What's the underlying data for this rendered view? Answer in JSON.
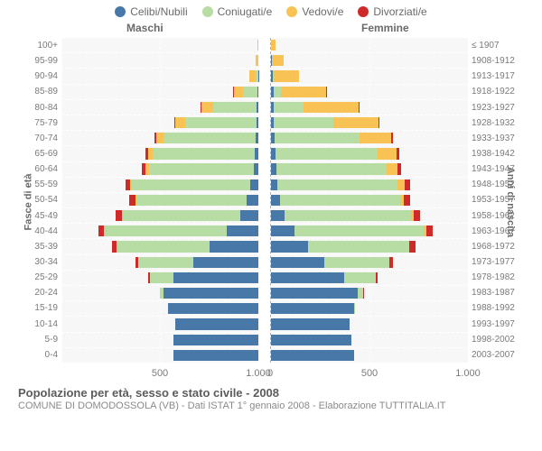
{
  "legend": [
    {
      "label": "Celibi/Nubili",
      "color": "#4878a8"
    },
    {
      "label": "Coniugati/e",
      "color": "#b7dca4"
    },
    {
      "label": "Vedovi/e",
      "color": "#f8c255"
    },
    {
      "label": "Divorziati/e",
      "color": "#cf2a2a"
    }
  ],
  "columns": {
    "male": "Maschi",
    "female": "Femmine"
  },
  "axis_left_title": "Fasce di età",
  "axis_right_title": "Anni di nascita",
  "age_labels": [
    "100+",
    "95-99",
    "90-94",
    "85-89",
    "80-84",
    "75-79",
    "70-74",
    "65-69",
    "60-64",
    "55-59",
    "50-54",
    "45-49",
    "40-44",
    "35-39",
    "30-34",
    "25-29",
    "20-24",
    "15-19",
    "10-14",
    "5-9",
    "0-4"
  ],
  "year_labels": [
    "≤ 1907",
    "1908-1912",
    "1913-1917",
    "1918-1922",
    "1923-1927",
    "1928-1932",
    "1933-1937",
    "1938-1942",
    "1943-1947",
    "1948-1952",
    "1953-1957",
    "1958-1962",
    "1963-1967",
    "1968-1972",
    "1973-1977",
    "1978-1982",
    "1983-1987",
    "1988-1992",
    "1993-1997",
    "1998-2002",
    "2003-2007"
  ],
  "x_max": 1000,
  "x_ticks": [
    {
      "pos": 0,
      "side": "left",
      "label": "1.000"
    },
    {
      "pos": 500,
      "side": "left",
      "label": "500"
    },
    {
      "pos": 0,
      "side": "center",
      "label": "0"
    },
    {
      "pos": 500,
      "side": "right",
      "label": "500"
    },
    {
      "pos": 1000,
      "side": "right",
      "label": "1.000"
    }
  ],
  "grid_steps": [
    500,
    1000
  ],
  "male": [
    {
      "single": 0,
      "married": 0,
      "widowed": 4,
      "divorced": 0
    },
    {
      "single": 0,
      "married": 0,
      "widowed": 16,
      "divorced": 0
    },
    {
      "single": 2,
      "married": 14,
      "widowed": 30,
      "divorced": 0
    },
    {
      "single": 6,
      "married": 70,
      "widowed": 50,
      "divorced": 2
    },
    {
      "single": 8,
      "married": 220,
      "widowed": 60,
      "divorced": 5
    },
    {
      "single": 10,
      "married": 360,
      "widowed": 50,
      "divorced": 6
    },
    {
      "single": 14,
      "married": 470,
      "widowed": 35,
      "divorced": 8
    },
    {
      "single": 18,
      "married": 520,
      "widowed": 22,
      "divorced": 12
    },
    {
      "single": 25,
      "married": 530,
      "widowed": 18,
      "divorced": 18
    },
    {
      "single": 40,
      "married": 600,
      "widowed": 10,
      "divorced": 25
    },
    {
      "single": 60,
      "married": 560,
      "widowed": 6,
      "divorced": 28
    },
    {
      "single": 90,
      "married": 600,
      "widowed": 4,
      "divorced": 30
    },
    {
      "single": 160,
      "married": 620,
      "widowed": 3,
      "divorced": 28
    },
    {
      "single": 250,
      "married": 470,
      "widowed": 2,
      "divorced": 22
    },
    {
      "single": 330,
      "married": 280,
      "widowed": 1,
      "divorced": 14
    },
    {
      "single": 430,
      "married": 120,
      "widowed": 0,
      "divorced": 8
    },
    {
      "single": 480,
      "married": 20,
      "widowed": 0,
      "divorced": 2
    },
    {
      "single": 460,
      "married": 0,
      "widowed": 0,
      "divorced": 0
    },
    {
      "single": 420,
      "married": 0,
      "widowed": 0,
      "divorced": 0
    },
    {
      "single": 430,
      "married": 0,
      "widowed": 0,
      "divorced": 0
    },
    {
      "single": 430,
      "married": 0,
      "widowed": 0,
      "divorced": 0
    }
  ],
  "female": [
    {
      "single": 2,
      "married": 0,
      "widowed": 22,
      "divorced": 0
    },
    {
      "single": 4,
      "married": 0,
      "widowed": 60,
      "divorced": 0
    },
    {
      "single": 8,
      "married": 6,
      "widowed": 130,
      "divorced": 0
    },
    {
      "single": 12,
      "married": 40,
      "widowed": 230,
      "divorced": 2
    },
    {
      "single": 14,
      "married": 150,
      "widowed": 280,
      "divorced": 4
    },
    {
      "single": 16,
      "married": 300,
      "widowed": 230,
      "divorced": 6
    },
    {
      "single": 18,
      "married": 430,
      "widowed": 160,
      "divorced": 10
    },
    {
      "single": 22,
      "married": 520,
      "widowed": 95,
      "divorced": 16
    },
    {
      "single": 26,
      "married": 560,
      "widowed": 55,
      "divorced": 20
    },
    {
      "single": 34,
      "married": 610,
      "widowed": 35,
      "divorced": 28
    },
    {
      "single": 45,
      "married": 610,
      "widowed": 20,
      "divorced": 32
    },
    {
      "single": 70,
      "married": 640,
      "widowed": 14,
      "divorced": 34
    },
    {
      "single": 120,
      "married": 660,
      "widowed": 8,
      "divorced": 34
    },
    {
      "single": 190,
      "married": 510,
      "widowed": 4,
      "divorced": 28
    },
    {
      "single": 270,
      "married": 330,
      "widowed": 2,
      "divorced": 18
    },
    {
      "single": 370,
      "married": 160,
      "widowed": 1,
      "divorced": 10
    },
    {
      "single": 440,
      "married": 30,
      "widowed": 0,
      "divorced": 3
    },
    {
      "single": 420,
      "married": 2,
      "widowed": 0,
      "divorced": 0
    },
    {
      "single": 400,
      "married": 0,
      "widowed": 0,
      "divorced": 0
    },
    {
      "single": 410,
      "married": 0,
      "widowed": 0,
      "divorced": 0
    },
    {
      "single": 420,
      "married": 0,
      "widowed": 0,
      "divorced": 0
    }
  ],
  "title": "Popolazione per età, sesso e stato civile - 2008",
  "source": "COMUNE DI DOMODOSSOLA (VB) - Dati ISTAT 1° gennaio 2008 - Elaborazione TUTTITALIA.IT",
  "background_color": "#f7f7f7",
  "grid_color": "#ffffff"
}
